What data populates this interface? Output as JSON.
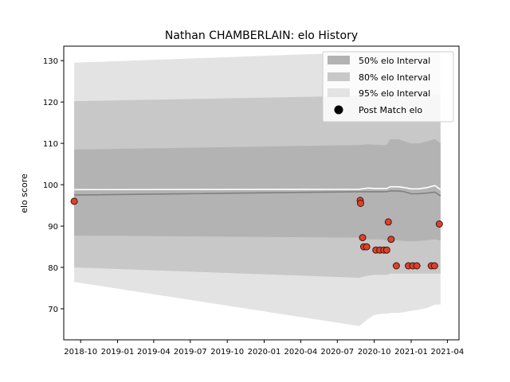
{
  "chart_data": {
    "type": "line",
    "title": "Nathan CHAMBERLAIN: elo History",
    "xlabel": "",
    "ylabel": "elo score",
    "xlim": [
      "2018-08-20",
      "2021-04-30"
    ],
    "ylim": [
      62.5,
      133.5
    ],
    "yticks": [
      70,
      80,
      90,
      100,
      110,
      120,
      130
    ],
    "xticks": [
      "2018-10",
      "2019-01",
      "2019-04",
      "2019-07",
      "2019-10",
      "2020-01",
      "2020-04",
      "2020-07",
      "2020-10",
      "2021-01",
      "2021-04"
    ],
    "grid": false,
    "legend_position": "top-right",
    "colors": {
      "band50": "#b3b3b3",
      "band80": "#c8c8c8",
      "band95": "#e3e3e3",
      "mean_line": "#808080",
      "upper_line": "#ffffff",
      "point_fill": "#e0402a",
      "point_edge": "#3a1a14"
    },
    "legend": [
      {
        "label": "50% elo Interval",
        "kind": "patch",
        "color": "#b3b3b3"
      },
      {
        "label": "80% elo Interval",
        "kind": "patch",
        "color": "#c8c8c8"
      },
      {
        "label": "95% elo Interval",
        "kind": "patch",
        "color": "#e3e3e3"
      },
      {
        "label": "Post Match elo",
        "kind": "marker",
        "color": "#000000"
      }
    ],
    "bands": {
      "x": [
        "2018-09-15",
        "2020-08-25",
        "2020-09-15",
        "2020-10-01",
        "2020-10-20",
        "2020-11-01",
        "2020-11-10",
        "2020-11-30",
        "2020-12-15",
        "2021-01-01",
        "2021-01-20",
        "2021-02-10",
        "2021-03-01",
        "2021-03-15"
      ],
      "mean": [
        97.5,
        98.3,
        98.3,
        98.3,
        98.3,
        98.3,
        98.5,
        98.5,
        98.3,
        97.8,
        97.8,
        98.0,
        98.2,
        97.3
      ],
      "upper": [
        98.8,
        98.9,
        99.2,
        99.1,
        99.1,
        99.1,
        99.5,
        99.5,
        99.3,
        99.0,
        99.0,
        99.3,
        99.8,
        98.8
      ],
      "p50_low": [
        87.7,
        87.2,
        86.8,
        86.8,
        86.8,
        86.5,
        86.6,
        86.5,
        86.4,
        86.3,
        86.4,
        86.6,
        86.8,
        86.5
      ],
      "p50_high": [
        108.5,
        109.6,
        109.8,
        109.7,
        109.6,
        109.6,
        111.0,
        111.0,
        110.5,
        110.0,
        110.0,
        110.5,
        111.0,
        110.0
      ],
      "p80_low": [
        80.0,
        77.5,
        78.0,
        78.2,
        78.2,
        78.2,
        78.5,
        78.5,
        78.5,
        78.5,
        78.5,
        78.5,
        78.5,
        78.5
      ],
      "p80_high": [
        120.2,
        121.5,
        121.8,
        121.8,
        121.8,
        121.8,
        122.0,
        122.0,
        122.0,
        122.0,
        122.0,
        122.0,
        122.0,
        122.0
      ],
      "p95_low": [
        76.5,
        65.8,
        67.5,
        68.5,
        68.8,
        68.8,
        69.0,
        69.0,
        69.2,
        69.5,
        69.8,
        70.2,
        71.0,
        71.0
      ],
      "p95_high": [
        129.5,
        132.0,
        132.0,
        132.0,
        132.0,
        132.0,
        132.0,
        132.0,
        132.0,
        132.0,
        132.0,
        132.0,
        132.0,
        132.0
      ]
    },
    "points": [
      {
        "x": "2018-09-15",
        "y": 96.0
      },
      {
        "x": "2020-08-27",
        "y": 96.2
      },
      {
        "x": "2020-08-28",
        "y": 95.5
      },
      {
        "x": "2020-09-02",
        "y": 87.2
      },
      {
        "x": "2020-09-05",
        "y": 85.0
      },
      {
        "x": "2020-09-12",
        "y": 85.0
      },
      {
        "x": "2020-10-05",
        "y": 84.2
      },
      {
        "x": "2020-10-15",
        "y": 84.2
      },
      {
        "x": "2020-10-25",
        "y": 84.2
      },
      {
        "x": "2020-11-01",
        "y": 84.2
      },
      {
        "x": "2020-11-05",
        "y": 91.0
      },
      {
        "x": "2020-11-12",
        "y": 86.8
      },
      {
        "x": "2020-11-25",
        "y": 80.4
      },
      {
        "x": "2020-12-25",
        "y": 80.4
      },
      {
        "x": "2021-01-05",
        "y": 80.4
      },
      {
        "x": "2021-01-15",
        "y": 80.4
      },
      {
        "x": "2021-02-20",
        "y": 80.4
      },
      {
        "x": "2021-02-28",
        "y": 80.4
      },
      {
        "x": "2021-03-12",
        "y": 90.5
      }
    ]
  }
}
